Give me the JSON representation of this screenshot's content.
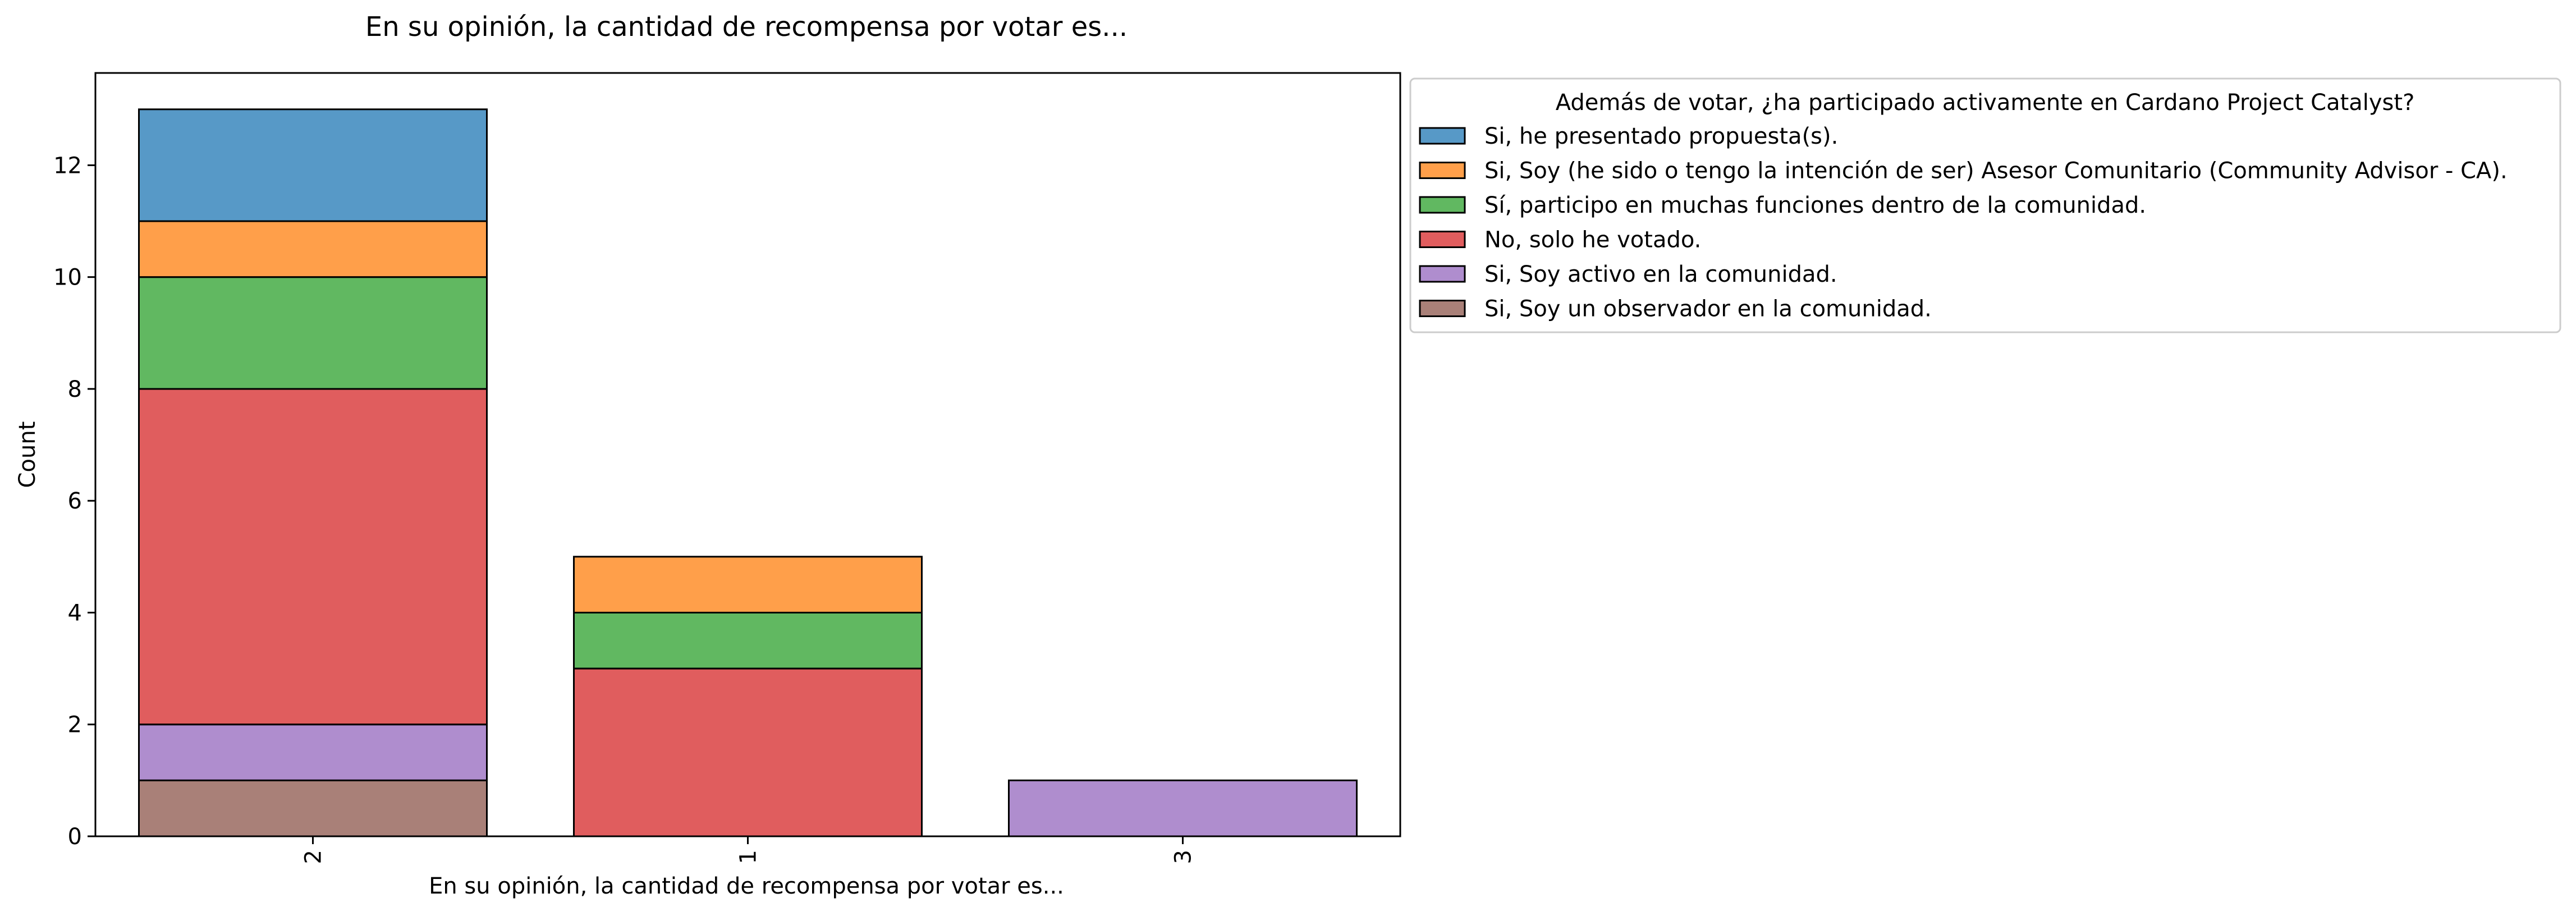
{
  "chart_data": {
    "type": "bar",
    "stacked": true,
    "title": "En su opinión, la cantidad de recompensa por votar es...",
    "xlabel": "En su opinión, la cantidad de recompensa por votar es...",
    "ylabel": "Count",
    "categories": [
      "2",
      "1",
      "3"
    ],
    "ylim": [
      0,
      13.65
    ],
    "yticks": [
      0,
      2,
      4,
      6,
      8,
      10,
      12
    ],
    "grid": false,
    "legend": {
      "title": "Además de votar, ¿ha participado activamente en Cardano Project Catalyst?",
      "placement": "outside-right-top"
    },
    "series": [
      {
        "name": "Si, he presentado propuesta(s).",
        "color": "#1f77b4",
        "values": [
          2,
          0,
          0
        ]
      },
      {
        "name": "Si, Soy (he sido o tengo la intención de ser) Asesor Comunitario (Community Advisor - CA).",
        "color": "#ff7f0e",
        "values": [
          1,
          1,
          0
        ]
      },
      {
        "name": "Sí, participo en muchas funciones dentro de la comunidad.",
        "color": "#2ca02c",
        "values": [
          2,
          1,
          0
        ]
      },
      {
        "name": "No, solo he votado.",
        "color": "#d62728",
        "values": [
          6,
          3,
          0
        ]
      },
      {
        "name": "Si, Soy activo en la comunidad.",
        "color": "#9467bd",
        "values": [
          1,
          0,
          1
        ]
      },
      {
        "name": "Si, Soy un observador en la comunidad.",
        "color": "#8c564b",
        "values": [
          1,
          0,
          0
        ]
      }
    ],
    "stack_order_bottom_to_top": [
      5,
      4,
      3,
      2,
      1,
      0
    ]
  }
}
